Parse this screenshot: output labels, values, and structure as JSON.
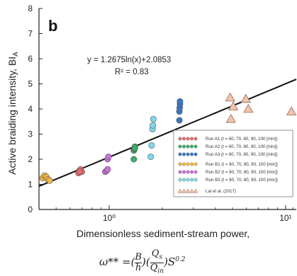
{
  "chart_data": {
    "type": "scatter",
    "panel_label": "b",
    "ylabel": "Active braiding intensity, BI",
    "ylabel_sub": "A",
    "xlabel": "Dimensionless sediment-stream power,",
    "xscale": "log",
    "xlim": [
      0.4,
      11.5
    ],
    "ylim": [
      0,
      8
    ],
    "yticks": [
      "0",
      "1",
      "2",
      "3",
      "4",
      "5",
      "6",
      "7",
      "8"
    ],
    "xticks": [
      "10⁰",
      "10¹"
    ],
    "trendline": {
      "label": "y = 1.2675ln(x)+2.0853",
      "r2_label": "R² = 0.83",
      "a": 1.2675,
      "b": 2.0853
    },
    "legend_position": "bottom-right",
    "series": [
      {
        "name": "Run A1",
        "params": "(t = 60, 70, 80, 90, 100 [min])",
        "color": "#e86a6a",
        "marker": "circle",
        "points": [
          [
            0.67,
            1.45
          ],
          [
            0.68,
            1.55
          ],
          [
            0.69,
            1.6
          ],
          [
            0.7,
            1.5
          ],
          [
            0.68,
            1.5
          ]
        ]
      },
      {
        "name": "Run A2",
        "params": "(t = 60, 70, 80, 90, 100 [min])",
        "color": "#3cae6a",
        "marker": "circle",
        "points": [
          [
            1.38,
            2.0
          ],
          [
            1.38,
            2.35
          ],
          [
            1.39,
            2.4
          ],
          [
            1.4,
            2.5
          ],
          [
            1.4,
            2.45
          ]
        ]
      },
      {
        "name": "Run A3",
        "params": "(t = 60, 70, 80, 90, 100 [min])",
        "color": "#3a78c2",
        "marker": "circle",
        "points": [
          [
            2.5,
            3.55
          ],
          [
            2.5,
            3.9
          ],
          [
            2.51,
            4.05
          ],
          [
            2.52,
            4.2
          ],
          [
            2.52,
            4.3
          ]
        ]
      },
      {
        "name": "Run B1",
        "params": "(t = 60, 70, 80, 90, 100 [min])",
        "color": "#f2b646",
        "marker": "circle",
        "points": [
          [
            0.42,
            1.25
          ],
          [
            0.43,
            1.35
          ],
          [
            0.44,
            1.3
          ],
          [
            0.45,
            1.2
          ],
          [
            0.46,
            1.15
          ]
        ]
      },
      {
        "name": "Run B2",
        "params": "(t = 60, 70, 80, 90, 100 [min])",
        "color": "#cc6fdc",
        "marker": "circle",
        "points": [
          [
            0.95,
            1.5
          ],
          [
            0.97,
            1.55
          ],
          [
            0.98,
            2.0
          ],
          [
            0.99,
            2.1
          ],
          [
            0.98,
            1.6
          ]
        ]
      },
      {
        "name": "Run B3",
        "params": "(t = 60, 70, 80, 90, 100 [min])",
        "color": "#7fd8ea",
        "marker": "circle",
        "points": [
          [
            1.72,
            2.1
          ],
          [
            1.74,
            2.55
          ],
          [
            1.76,
            3.2
          ],
          [
            1.77,
            3.35
          ],
          [
            1.78,
            3.6
          ]
        ]
      },
      {
        "name": "Lai et al. (2017)",
        "params": "",
        "color": "#f0c4ad",
        "marker": "triangle",
        "points": [
          [
            4.85,
            4.45
          ],
          [
            5.05,
            4.1
          ],
          [
            4.9,
            3.6
          ],
          [
            5.95,
            4.4
          ],
          [
            6.15,
            4.0
          ],
          [
            10.8,
            3.9
          ]
        ]
      }
    ]
  }
}
